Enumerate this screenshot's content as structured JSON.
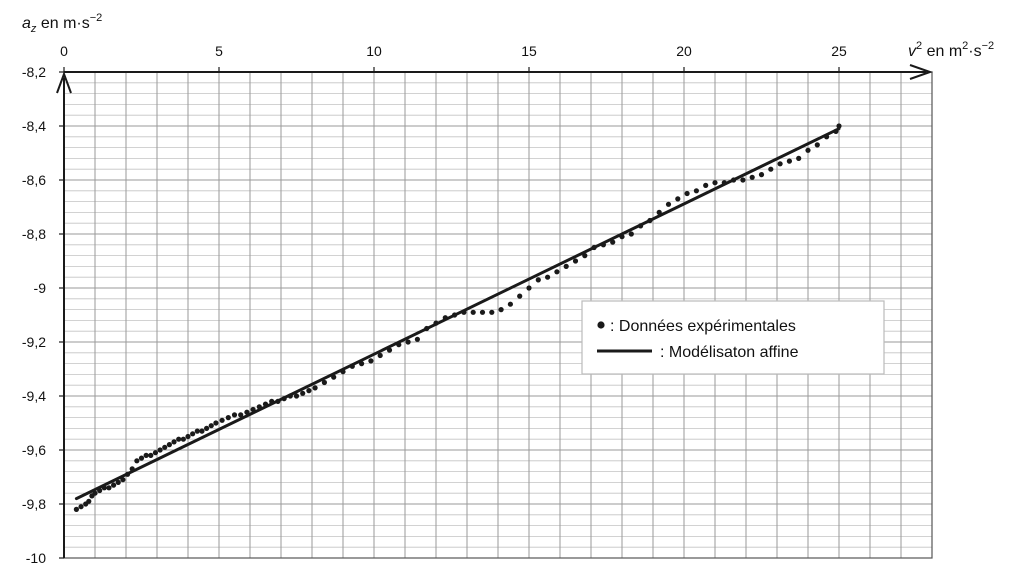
{
  "chart_data": {
    "type": "scatter",
    "y_axis_label": {
      "symbol": "a",
      "subscript": "z",
      "text": " en m·s",
      "exponent": "−2"
    },
    "x_axis_label": {
      "symbol": "v",
      "superscript": "2",
      "text": " en m",
      "unit_exponent": "2",
      "text2": "·s",
      "exponent": "−2"
    },
    "xlim": [
      0,
      28
    ],
    "ylim": [
      -10,
      -8.2
    ],
    "x_ticks": [
      {
        "value": 0,
        "label": "0"
      },
      {
        "value": 5,
        "label": "5"
      },
      {
        "value": 10,
        "label": "10"
      },
      {
        "value": 15,
        "label": "15"
      },
      {
        "value": 20,
        "label": "20"
      },
      {
        "value": 25,
        "label": "25"
      }
    ],
    "y_ticks": [
      {
        "value": -8.2,
        "label": "-8,2"
      },
      {
        "value": -8.4,
        "label": "-8,4"
      },
      {
        "value": -8.6,
        "label": "-8,6"
      },
      {
        "value": -8.8,
        "label": "-8,8"
      },
      {
        "value": -9.0,
        "label": "-9"
      },
      {
        "value": -9.2,
        "label": "-9,2"
      },
      {
        "value": -9.4,
        "label": "-9,4"
      },
      {
        "value": -9.6,
        "label": "-9,6"
      },
      {
        "value": -9.8,
        "label": "-9,8"
      },
      {
        "value": -10.0,
        "label": "-10"
      }
    ],
    "grid": {
      "major_x_step": 1,
      "minor_y_step": 0.04,
      "major_y_step": 0.2
    },
    "legend": {
      "position": "right-middle",
      "items": [
        {
          "marker": "dot",
          "label": ": Données expérimentales"
        },
        {
          "marker": "line",
          "label": ": Modélisaton affine"
        }
      ]
    },
    "series": [
      {
        "kind": "points",
        "points": [
          [
            0.4,
            -9.82
          ],
          [
            0.55,
            -9.81
          ],
          [
            0.7,
            -9.8
          ],
          [
            0.8,
            -9.79
          ],
          [
            0.9,
            -9.77
          ],
          [
            1.0,
            -9.76
          ],
          [
            1.15,
            -9.75
          ],
          [
            1.3,
            -9.74
          ],
          [
            1.45,
            -9.74
          ],
          [
            1.6,
            -9.73
          ],
          [
            1.75,
            -9.72
          ],
          [
            1.9,
            -9.71
          ],
          [
            2.05,
            -9.69
          ],
          [
            2.2,
            -9.67
          ],
          [
            2.35,
            -9.64
          ],
          [
            2.5,
            -9.63
          ],
          [
            2.65,
            -9.62
          ],
          [
            2.8,
            -9.62
          ],
          [
            2.95,
            -9.61
          ],
          [
            3.1,
            -9.6
          ],
          [
            3.25,
            -9.59
          ],
          [
            3.4,
            -9.58
          ],
          [
            3.55,
            -9.57
          ],
          [
            3.7,
            -9.56
          ],
          [
            3.85,
            -9.56
          ],
          [
            4.0,
            -9.55
          ],
          [
            4.15,
            -9.54
          ],
          [
            4.3,
            -9.53
          ],
          [
            4.45,
            -9.53
          ],
          [
            4.6,
            -9.52
          ],
          [
            4.75,
            -9.51
          ],
          [
            4.9,
            -9.5
          ],
          [
            5.1,
            -9.49
          ],
          [
            5.3,
            -9.48
          ],
          [
            5.5,
            -9.47
          ],
          [
            5.7,
            -9.47
          ],
          [
            5.9,
            -9.46
          ],
          [
            6.1,
            -9.45
          ],
          [
            6.3,
            -9.44
          ],
          [
            6.5,
            -9.43
          ],
          [
            6.7,
            -9.42
          ],
          [
            6.9,
            -9.42
          ],
          [
            7.1,
            -9.41
          ],
          [
            7.3,
            -9.4
          ],
          [
            7.5,
            -9.4
          ],
          [
            7.7,
            -9.39
          ],
          [
            7.9,
            -9.38
          ],
          [
            8.1,
            -9.37
          ],
          [
            8.4,
            -9.35
          ],
          [
            8.7,
            -9.33
          ],
          [
            9.0,
            -9.31
          ],
          [
            9.3,
            -9.29
          ],
          [
            9.6,
            -9.28
          ],
          [
            9.9,
            -9.27
          ],
          [
            10.2,
            -9.25
          ],
          [
            10.5,
            -9.23
          ],
          [
            10.8,
            -9.21
          ],
          [
            11.1,
            -9.2
          ],
          [
            11.4,
            -9.19
          ],
          [
            11.7,
            -9.15
          ],
          [
            12.0,
            -9.13
          ],
          [
            12.3,
            -9.11
          ],
          [
            12.6,
            -9.1
          ],
          [
            12.9,
            -9.09
          ],
          [
            13.2,
            -9.09
          ],
          [
            13.5,
            -9.09
          ],
          [
            13.8,
            -9.09
          ],
          [
            14.1,
            -9.08
          ],
          [
            14.4,
            -9.06
          ],
          [
            14.7,
            -9.03
          ],
          [
            15.0,
            -9.0
          ],
          [
            15.3,
            -8.97
          ],
          [
            15.6,
            -8.96
          ],
          [
            15.9,
            -8.94
          ],
          [
            16.2,
            -8.92
          ],
          [
            16.5,
            -8.9
          ],
          [
            16.8,
            -8.88
          ],
          [
            17.1,
            -8.85
          ],
          [
            17.4,
            -8.84
          ],
          [
            17.7,
            -8.83
          ],
          [
            18.0,
            -8.81
          ],
          [
            18.3,
            -8.8
          ],
          [
            18.6,
            -8.77
          ],
          [
            18.9,
            -8.75
          ],
          [
            19.2,
            -8.72
          ],
          [
            19.5,
            -8.69
          ],
          [
            19.8,
            -8.67
          ],
          [
            20.1,
            -8.65
          ],
          [
            20.4,
            -8.64
          ],
          [
            20.7,
            -8.62
          ],
          [
            21.0,
            -8.61
          ],
          [
            21.3,
            -8.61
          ],
          [
            21.6,
            -8.6
          ],
          [
            21.9,
            -8.6
          ],
          [
            22.2,
            -8.59
          ],
          [
            22.5,
            -8.58
          ],
          [
            22.8,
            -8.56
          ],
          [
            23.1,
            -8.54
          ],
          [
            23.4,
            -8.53
          ],
          [
            23.7,
            -8.52
          ],
          [
            24.0,
            -8.49
          ],
          [
            24.3,
            -8.47
          ],
          [
            24.6,
            -8.44
          ],
          [
            24.9,
            -8.42
          ],
          [
            25.0,
            -8.4
          ]
        ]
      },
      {
        "kind": "line",
        "points": [
          [
            0.4,
            -9.78
          ],
          [
            25.0,
            -8.41
          ]
        ]
      }
    ]
  }
}
